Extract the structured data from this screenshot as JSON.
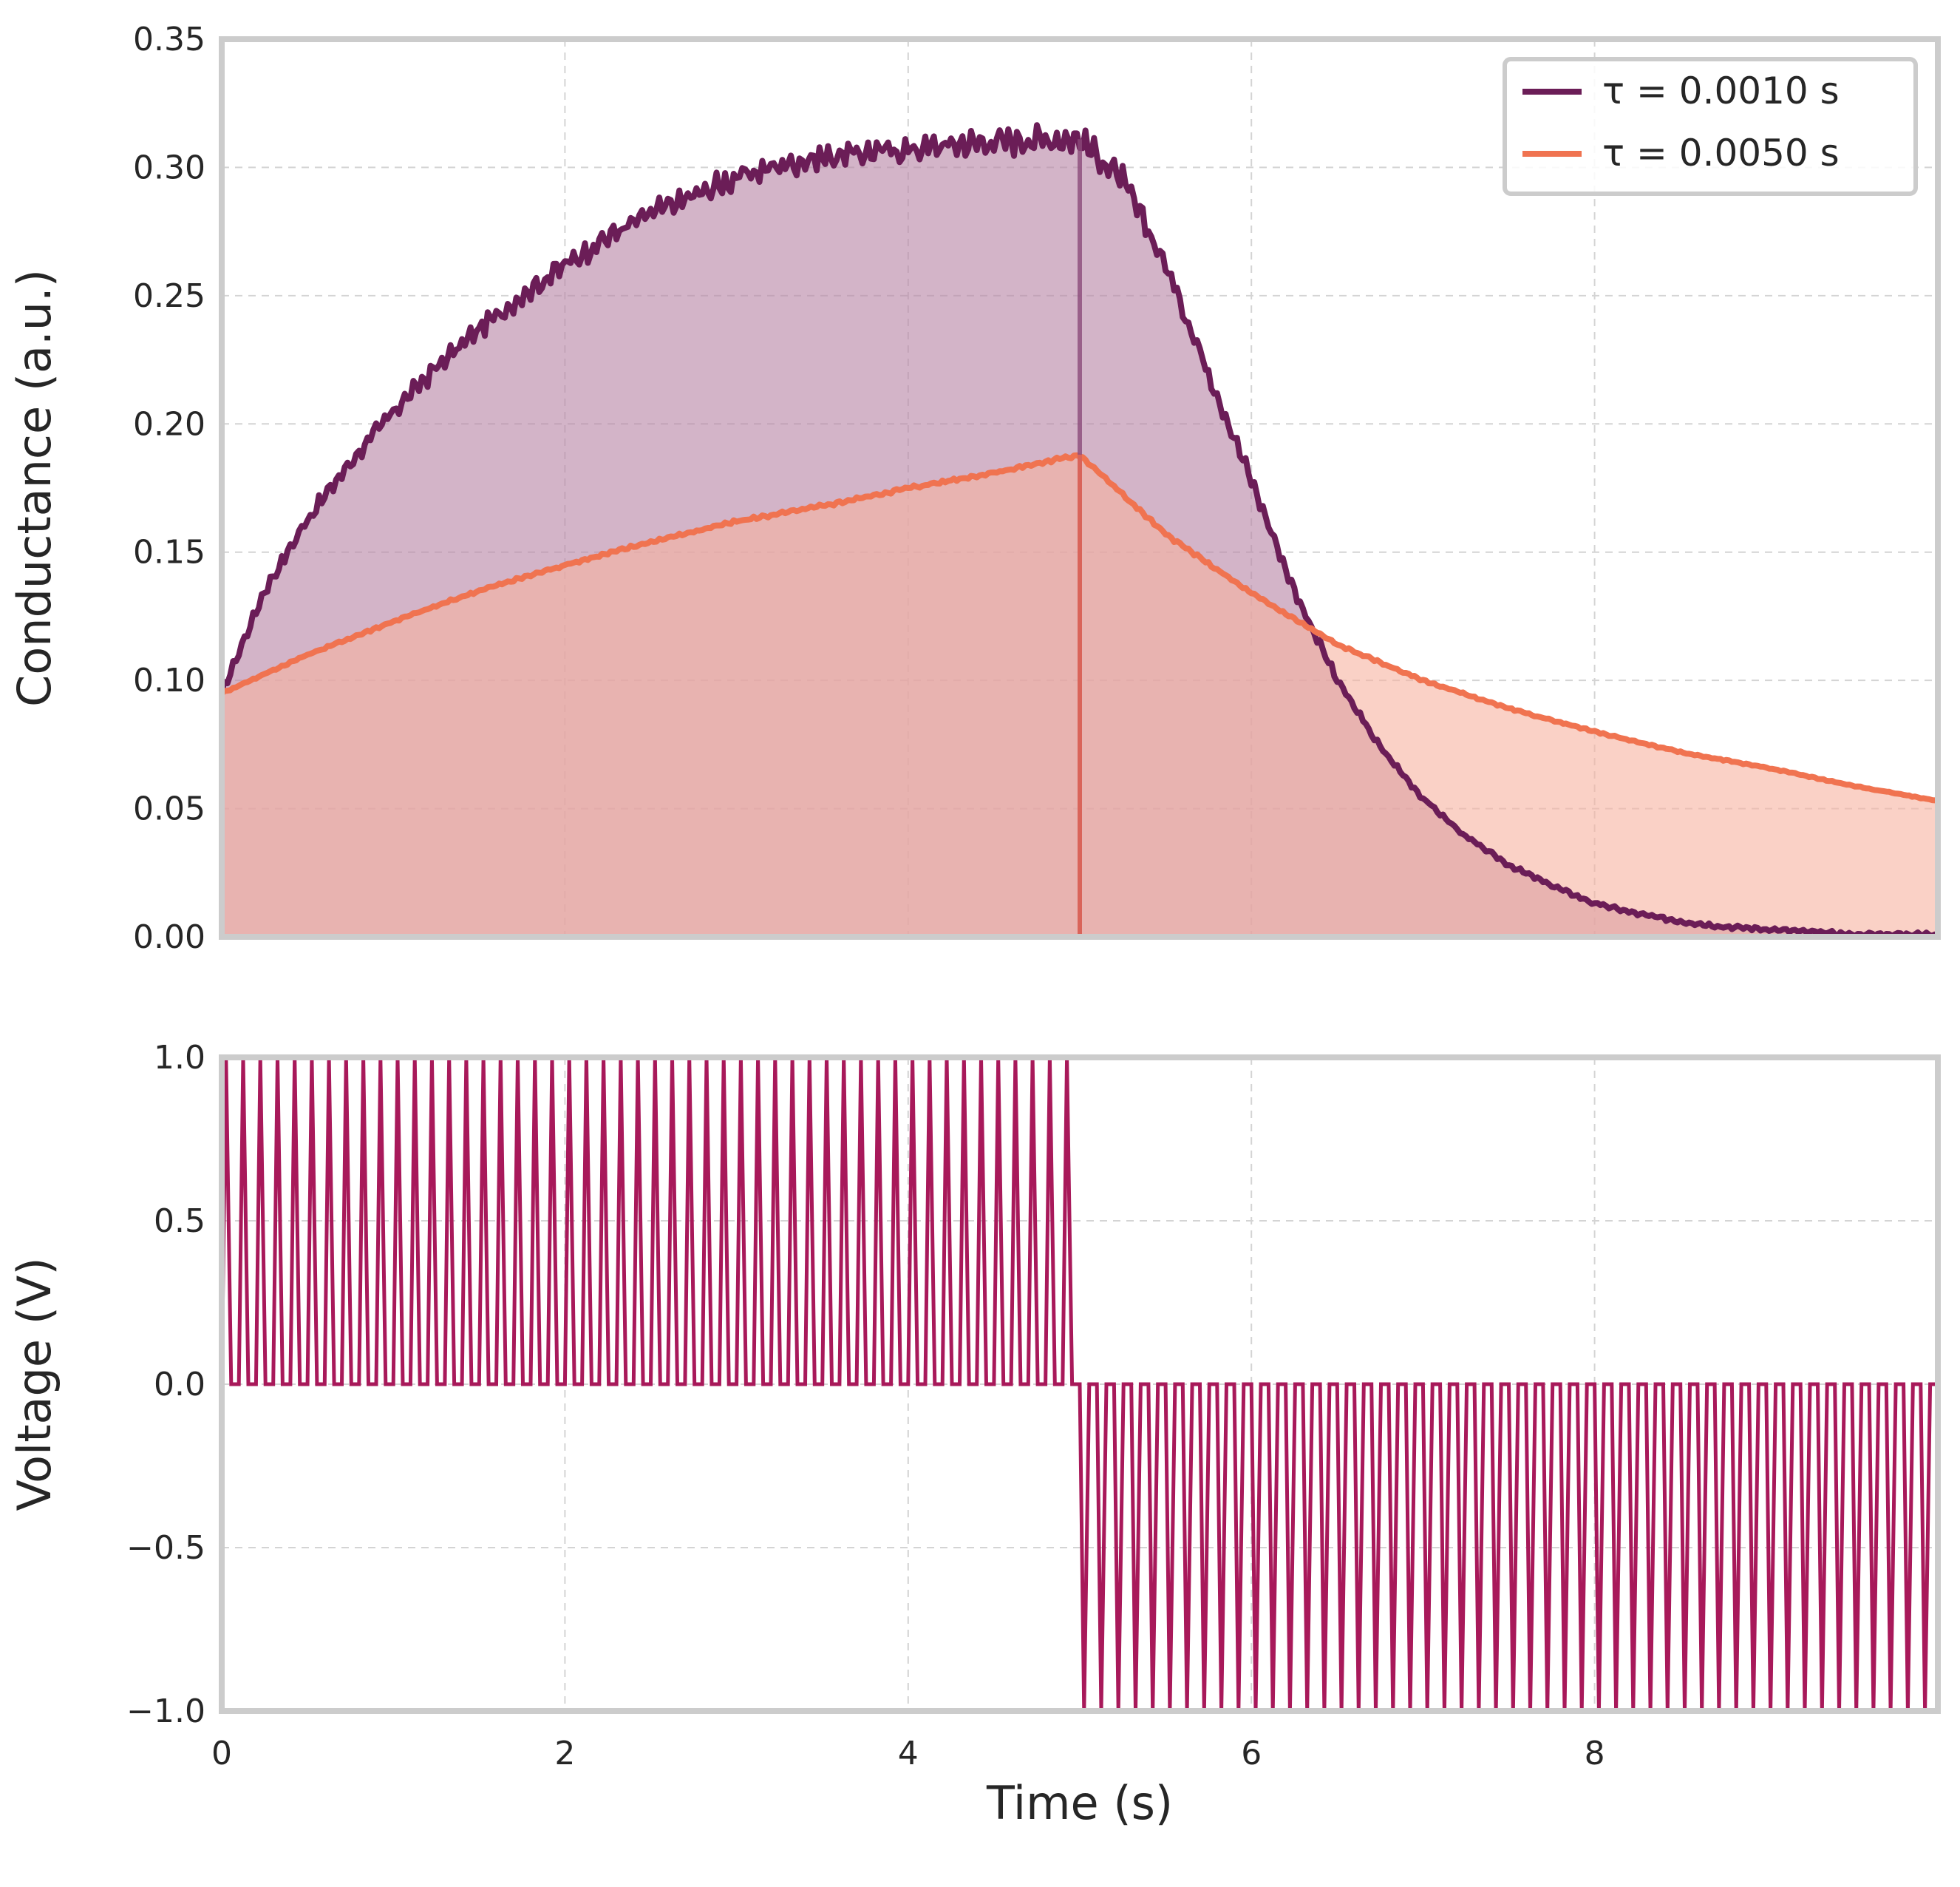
{
  "chart_data": [
    {
      "type": "line",
      "panel": "top",
      "title": "",
      "xlabel": "",
      "ylabel": "Conductance (a.u.)",
      "xlim": [
        0,
        10
      ],
      "ylim": [
        0,
        0.35
      ],
      "yticks": [
        "0.00",
        "0.05",
        "0.10",
        "0.15",
        "0.20",
        "0.25",
        "0.30",
        "0.35"
      ],
      "grid": true,
      "legend_location": "top-right",
      "pulse_switch_time": 5.0,
      "series": [
        {
          "name": "τ = 0.0010 s",
          "color": "#6b1d57",
          "fill": true,
          "x": [
            0,
            0.25,
            0.5,
            0.75,
            1.0,
            1.25,
            1.5,
            1.75,
            2.0,
            2.25,
            2.5,
            2.75,
            3.0,
            3.25,
            3.5,
            3.75,
            4.0,
            4.25,
            4.5,
            4.75,
            5.0,
            5.25,
            5.5,
            5.75,
            6.0,
            6.25,
            6.5,
            6.75,
            7.0,
            7.25,
            7.5,
            7.75,
            8.0,
            8.25,
            8.5,
            8.75,
            9.0,
            9.25,
            9.5,
            9.75,
            10.0
          ],
          "values": [
            0.095,
            0.135,
            0.163,
            0.185,
            0.205,
            0.222,
            0.237,
            0.25,
            0.262,
            0.273,
            0.282,
            0.289,
            0.296,
            0.301,
            0.304,
            0.306,
            0.307,
            0.309,
            0.31,
            0.311,
            0.311,
            0.295,
            0.262,
            0.22,
            0.178,
            0.135,
            0.1,
            0.074,
            0.054,
            0.039,
            0.028,
            0.02,
            0.013,
            0.009,
            0.006,
            0.004,
            0.003,
            0.002,
            0.001,
            0.001,
            0.001
          ]
        },
        {
          "name": "τ = 0.0050 s",
          "color": "#f07350",
          "fill": true,
          "x": [
            0,
            0.5,
            1.0,
            1.5,
            2.0,
            2.5,
            3.0,
            3.5,
            4.0,
            4.5,
            5.0,
            5.5,
            6.0,
            6.5,
            7.0,
            7.5,
            8.0,
            8.5,
            9.0,
            9.5,
            10.0
          ],
          "values": [
            0.095,
            0.11,
            0.123,
            0.135,
            0.145,
            0.154,
            0.162,
            0.168,
            0.175,
            0.181,
            0.188,
            0.157,
            0.134,
            0.114,
            0.1,
            0.089,
            0.08,
            0.072,
            0.066,
            0.059,
            0.053
          ]
        }
      ]
    },
    {
      "type": "line",
      "panel": "bottom",
      "title": "",
      "xlabel": "Time (s)",
      "ylabel": "Voltage (V)",
      "xlim": [
        0,
        10
      ],
      "ylim": [
        -1.0,
        1.0
      ],
      "xticks": [
        "0",
        "2",
        "4",
        "6",
        "8"
      ],
      "yticks": [
        "−1.0",
        "−0.5",
        "0.0",
        "0.5",
        "1.0"
      ],
      "grid": true,
      "series": [
        {
          "name": "Voltage",
          "color": "#a8195a",
          "waveform": "pulse train",
          "pulse_period": 0.1,
          "pulse_amplitude_before_switch": 1.0,
          "pulse_amplitude_after_switch": -1.0,
          "switch_time": 5.0,
          "baseline": 0.0
        }
      ]
    }
  ]
}
